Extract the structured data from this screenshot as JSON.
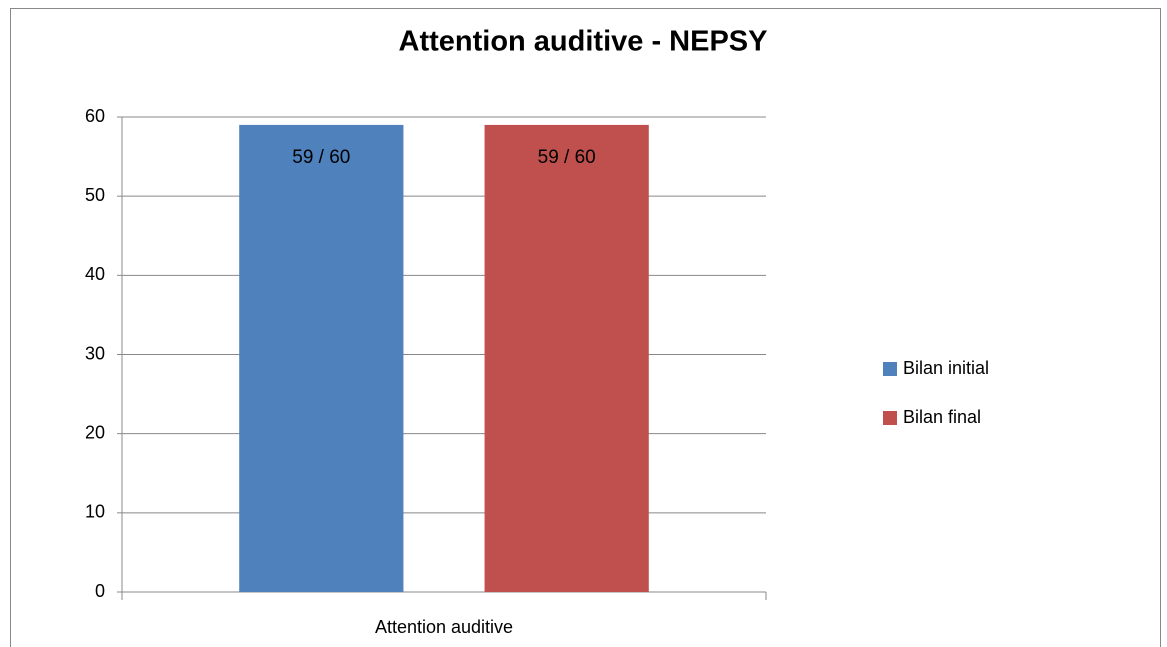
{
  "chart_data": {
    "type": "bar",
    "title": "Attention auditive - NEPSY",
    "categories": [
      "Attention auditive"
    ],
    "series": [
      {
        "name": "Bilan initial",
        "color": "#4f81bd",
        "values": [
          59
        ],
        "value_labels": [
          "59 / 60"
        ]
      },
      {
        "name": "Bilan final",
        "color": "#c0504d",
        "values": [
          59
        ],
        "value_labels": [
          "59 / 60"
        ]
      }
    ],
    "ylim": [
      0,
      60
    ],
    "yticks": [
      0,
      10,
      20,
      30,
      40,
      50,
      60
    ],
    "grid": true,
    "legend": "right"
  }
}
